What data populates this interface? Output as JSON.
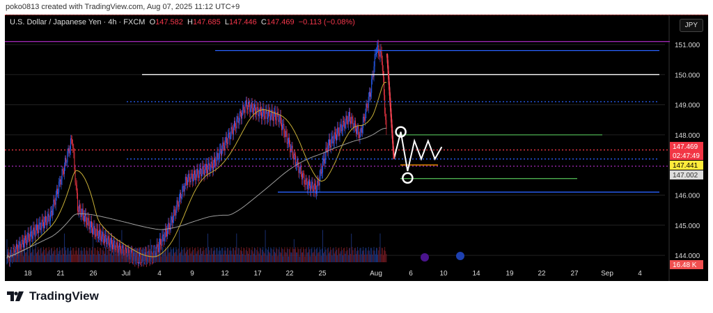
{
  "credit": "poko0813 created with TradingView.com, Aug 07, 2025 11:12 UTC+9",
  "header": {
    "symbol": "U.S. Dollar / Japanese Yen · 4h · FXCM",
    "o_label": "O",
    "o": "147.582",
    "h_label": "H",
    "h": "147.685",
    "l_label": "L",
    "l": "147.446",
    "c_label": "C",
    "c": "147.469",
    "change": "−0.113 (−0.08%)",
    "currency_button": "JPY"
  },
  "price_axis": {
    "ticks": [
      "151.000",
      "150.000",
      "149.000",
      "148.000",
      "146.000",
      "145.000",
      "144.000"
    ],
    "labels": {
      "last": "147.469",
      "countdown": "02:47:49",
      "ma": "147.441",
      "level": "147.002",
      "volume": "16.48 K"
    }
  },
  "colors": {
    "up": "#2962ff",
    "down": "#f23645",
    "ma_fast": "#c9b037",
    "ma_slow": "#9e9e9e",
    "last": "#f23645",
    "ma_tag": "#ffeb3b"
  },
  "chart_data": {
    "type": "candlestick",
    "title": "U.S. Dollar / Japanese Yen · 4h · FXCM",
    "ylim": [
      143.7,
      151.3
    ],
    "x_ticks": [
      "18",
      "21",
      "26",
      "Jul",
      "4",
      "9",
      "12",
      "17",
      "22",
      "25",
      "Aug",
      "6",
      "10",
      "14",
      "19",
      "22",
      "27",
      "Sep",
      "4"
    ],
    "close_keypoints": [
      [
        0,
        143.9
      ],
      [
        4,
        144.6
      ],
      [
        8,
        145.3
      ],
      [
        12,
        147.9
      ],
      [
        13,
        145.6
      ],
      [
        16,
        144.8
      ],
      [
        20,
        144.3
      ],
      [
        24,
        143.9
      ],
      [
        27,
        144.0
      ],
      [
        30,
        145.0
      ],
      [
        33,
        146.5
      ],
      [
        38,
        147.0
      ],
      [
        41,
        148.0
      ],
      [
        44,
        149.0
      ],
      [
        47,
        148.7
      ],
      [
        50,
        148.6
      ],
      [
        53,
        147.2
      ],
      [
        55,
        146.4
      ],
      [
        57,
        146.2
      ],
      [
        59,
        147.6
      ],
      [
        63,
        148.6
      ],
      [
        65,
        148.0
      ],
      [
        67,
        149.5
      ],
      [
        68,
        150.9
      ],
      [
        69,
        150.6
      ],
      [
        70,
        147.6
      ]
    ],
    "levels": [
      151.1,
      150.8,
      150.0,
      149.1,
      148.0,
      147.5,
      147.2,
      147.0,
      146.96,
      146.1
    ],
    "projection": [
      [
        70,
        150.7
      ],
      [
        71,
        147.2
      ],
      [
        72,
        148.1
      ],
      [
        73,
        146.8
      ],
      [
        74,
        147.8
      ],
      [
        75,
        147.2
      ],
      [
        76,
        147.8
      ],
      [
        77,
        147.2
      ],
      [
        78,
        147.6
      ]
    ]
  }
}
